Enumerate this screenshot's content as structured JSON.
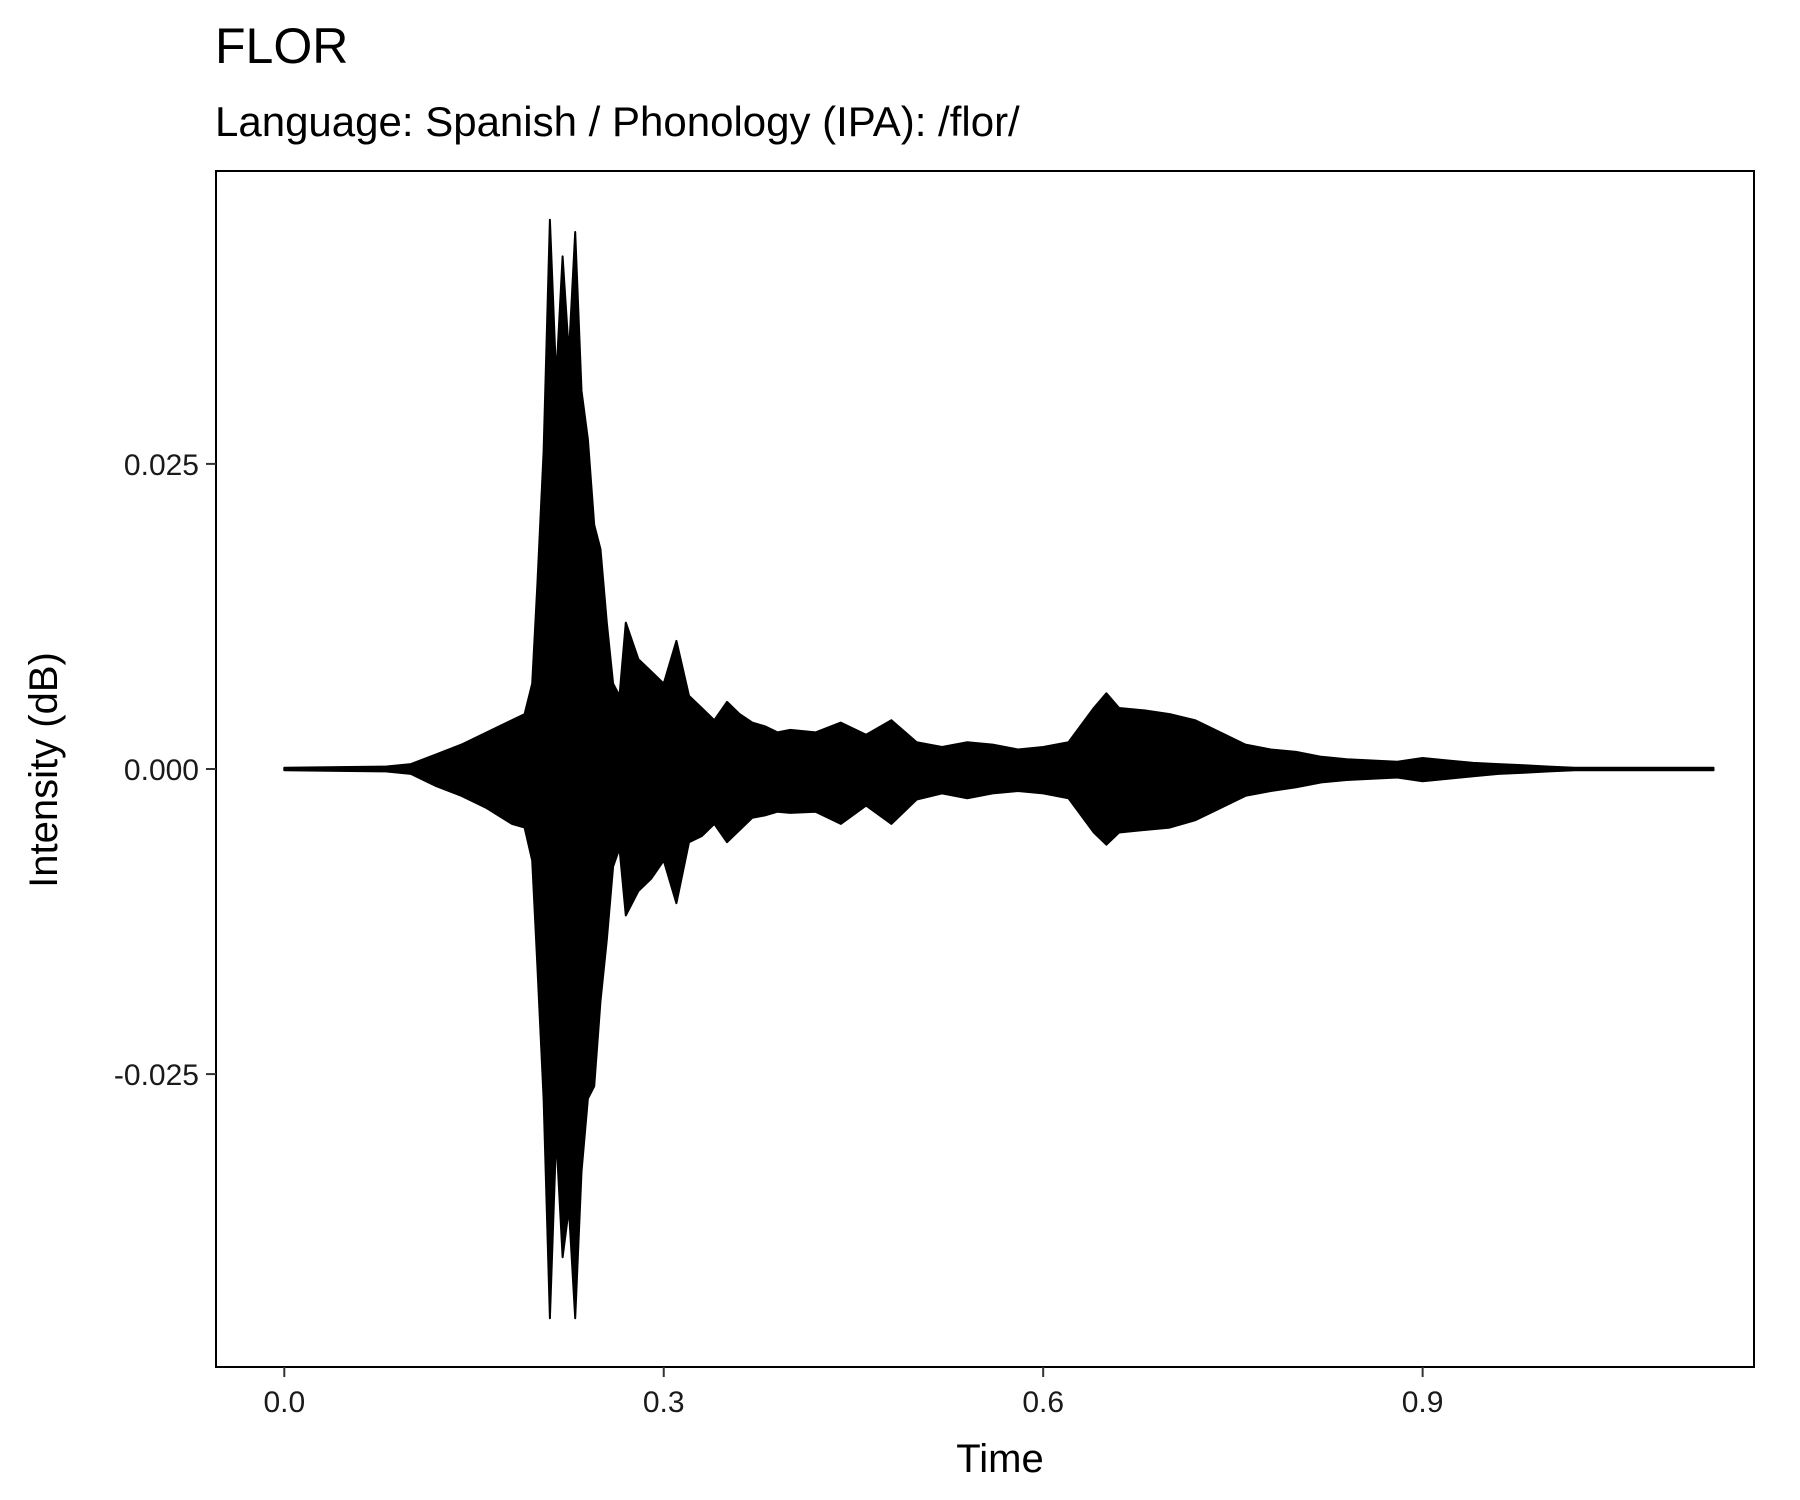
{
  "chart_data": {
    "type": "line",
    "title": "FLOR",
    "subtitle": "Language: Spanish / Phonology (IPA): /flor/",
    "xlabel": "Time",
    "ylabel": "Intensity (dB)",
    "xlim": [
      -0.054,
      1.162
    ],
    "ylim": [
      -0.049,
      0.049
    ],
    "x_ticks": [
      0.0,
      0.3,
      0.6,
      0.9
    ],
    "x_tick_labels": [
      "0.0",
      "0.3",
      "0.6",
      "0.9"
    ],
    "y_ticks": [
      0.025,
      0.0,
      -0.025
    ],
    "y_tick_labels": [
      "0.025",
      "0.000",
      "-0.025"
    ],
    "grid": false,
    "legend": "none",
    "line_color": "#000000",
    "series": [
      {
        "x": [
          0.0,
          0.08,
          0.1,
          0.12,
          0.14,
          0.16,
          0.18,
          0.19,
          0.196,
          0.2,
          0.205,
          0.21,
          0.215,
          0.22,
          0.225,
          0.23,
          0.235,
          0.24,
          0.245,
          0.25,
          0.255,
          0.26,
          0.265,
          0.27,
          0.28,
          0.29,
          0.3,
          0.31,
          0.32,
          0.33,
          0.34,
          0.35,
          0.36,
          0.37,
          0.38,
          0.39,
          0.4,
          0.42,
          0.44,
          0.46,
          0.48,
          0.5,
          0.52,
          0.54,
          0.56,
          0.58,
          0.6,
          0.62,
          0.64,
          0.65,
          0.66,
          0.68,
          0.7,
          0.72,
          0.74,
          0.76,
          0.78,
          0.8,
          0.82,
          0.84,
          0.86,
          0.88,
          0.9,
          0.92,
          0.94,
          0.96,
          0.98,
          1.0,
          1.02,
          1.04,
          1.06,
          1.08,
          1.1,
          1.13
        ],
        "upper": [
          0.0001,
          0.0002,
          0.0004,
          0.0012,
          0.002,
          0.003,
          0.004,
          0.0045,
          0.007,
          0.015,
          0.026,
          0.045,
          0.032,
          0.042,
          0.034,
          0.044,
          0.031,
          0.027,
          0.02,
          0.018,
          0.012,
          0.007,
          0.006,
          0.012,
          0.009,
          0.008,
          0.007,
          0.0105,
          0.006,
          0.005,
          0.004,
          0.0055,
          0.0045,
          0.0038,
          0.0035,
          0.003,
          0.0032,
          0.003,
          0.0038,
          0.0028,
          0.004,
          0.0022,
          0.0018,
          0.0022,
          0.002,
          0.0016,
          0.0018,
          0.0022,
          0.005,
          0.0062,
          0.005,
          0.0048,
          0.0045,
          0.004,
          0.003,
          0.002,
          0.0016,
          0.0014,
          0.001,
          0.0008,
          0.0007,
          0.0006,
          0.0009,
          0.0007,
          0.0005,
          0.0004,
          0.0003,
          0.0002,
          0.0001,
          0.0001,
          0.0001,
          0.0001,
          0.0001,
          0.0001
        ],
        "lower": [
          -0.0001,
          -0.0002,
          -0.0004,
          -0.0014,
          -0.0022,
          -0.0032,
          -0.0045,
          -0.0048,
          -0.0075,
          -0.016,
          -0.027,
          -0.045,
          -0.03,
          -0.04,
          -0.036,
          -0.045,
          -0.033,
          -0.027,
          -0.026,
          -0.019,
          -0.014,
          -0.008,
          -0.0065,
          -0.012,
          -0.01,
          -0.009,
          -0.0075,
          -0.011,
          -0.006,
          -0.0055,
          -0.0045,
          -0.006,
          -0.005,
          -0.004,
          -0.0038,
          -0.0035,
          -0.0036,
          -0.0035,
          -0.0045,
          -0.003,
          -0.0045,
          -0.0025,
          -0.002,
          -0.0024,
          -0.002,
          -0.0018,
          -0.002,
          -0.0024,
          -0.0052,
          -0.0062,
          -0.0052,
          -0.005,
          -0.0048,
          -0.0042,
          -0.0032,
          -0.0022,
          -0.0018,
          -0.0015,
          -0.0011,
          -0.0009,
          -0.0008,
          -0.0007,
          -0.001,
          -0.0008,
          -0.0006,
          -0.0004,
          -0.0003,
          -0.0002,
          -0.0001,
          -0.0001,
          -0.0001,
          -0.0001,
          -0.0001,
          -0.0001
        ]
      }
    ]
  }
}
